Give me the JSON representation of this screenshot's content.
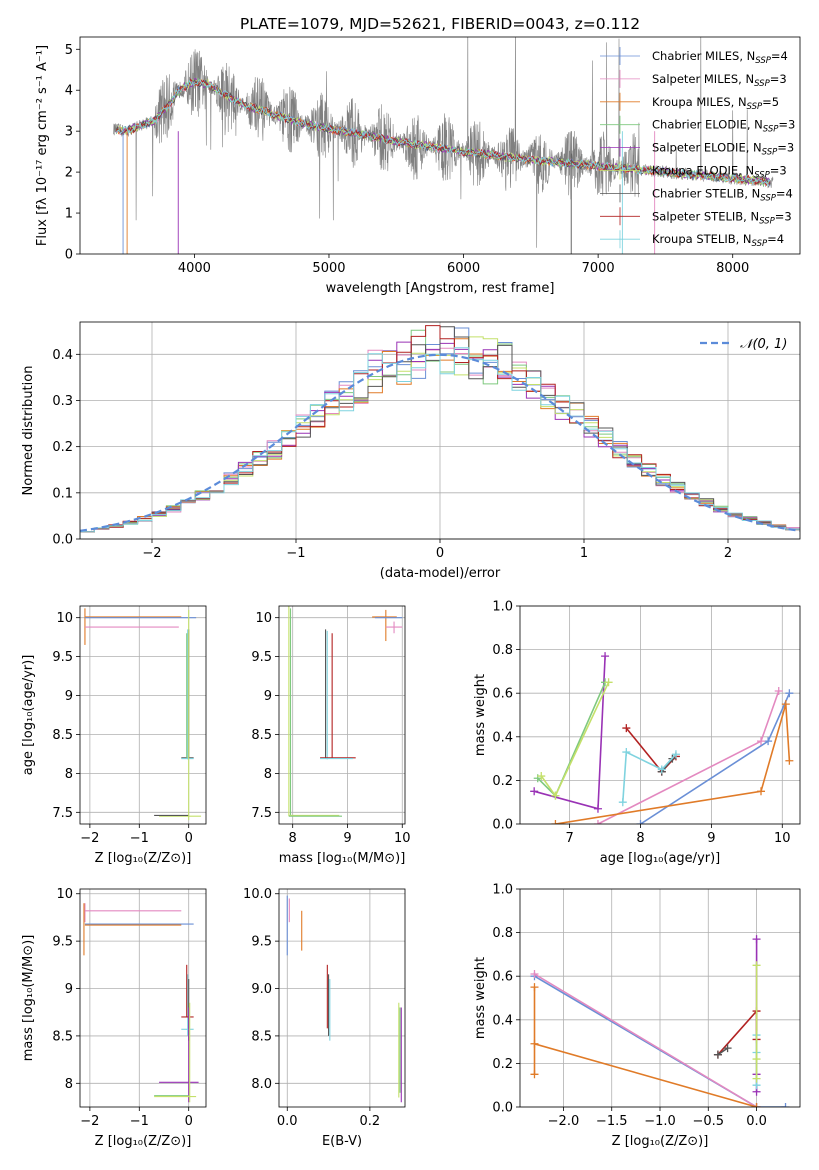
{
  "chart_data": [
    {
      "type": "line",
      "title": "PLATE=1079, MJD=52621, FIBERID=0043, z=0.112",
      "xlabel": "wavelength [Angstrom, rest frame]",
      "ylabel": "Flux [fλ 10⁻¹⁷ erg cm⁻² s⁻¹ A⁻¹]",
      "xlim": [
        3150,
        8500
      ],
      "ylim": [
        0,
        5.3
      ],
      "xticks": [
        4000,
        5000,
        6000,
        7000,
        8000
      ],
      "yticks": [
        0,
        1,
        2,
        3,
        4,
        5
      ],
      "grid": false,
      "legend_position": "top-right",
      "data_color": "#808080",
      "series": [
        {
          "name": "Chabrier MILES, N",
          "sub": "SSP",
          "suffix": "=4",
          "color": "#6a8fd6"
        },
        {
          "name": "Salpeter MILES, N",
          "sub": "SSP",
          "suffix": "=3",
          "color": "#e389c0"
        },
        {
          "name": "Kroupa MILES, N",
          "sub": "SSP",
          "suffix": "=5",
          "color": "#e07b28"
        },
        {
          "name": "Chabrier ELODIE, N",
          "sub": "SSP",
          "suffix": "=3",
          "color": "#7fc97f"
        },
        {
          "name": "Salpeter ELODIE, N",
          "sub": "SSP",
          "suffix": "=3",
          "color": "#9932b5"
        },
        {
          "name": "Kroupa ELODIE, N",
          "sub": "SSP",
          "suffix": "=3",
          "color": "#c4e06a"
        },
        {
          "name": "Chabrier STELIB, N",
          "sub": "SSP",
          "suffix": "=4",
          "color": "#555555"
        },
        {
          "name": "Salpeter STELIB, N",
          "sub": "SSP",
          "suffix": "=3",
          "color": "#b22222"
        },
        {
          "name": "Kroupa STELIB, N",
          "sub": "SSP",
          "suffix": "=4",
          "color": "#7fd3df"
        }
      ],
      "continuum": {
        "x": [
          3400,
          3500,
          3600,
          3700,
          3800,
          3900,
          4000,
          4100,
          4200,
          4300,
          4400,
          4600,
          4800,
          5000,
          5200,
          5500,
          6000,
          6500,
          7000,
          7500,
          8000,
          8300
        ],
        "y": [
          3.05,
          3.0,
          3.15,
          3.25,
          3.6,
          4.05,
          4.2,
          4.15,
          3.95,
          3.75,
          3.6,
          3.4,
          3.2,
          3.05,
          2.95,
          2.75,
          2.5,
          2.3,
          2.15,
          2.0,
          1.85,
          1.75
        ]
      }
    },
    {
      "type": "line",
      "xlabel": "(data-model)/error",
      "ylabel": "Normed distribution",
      "xlim": [
        -2.5,
        2.5
      ],
      "ylim": [
        0,
        0.47
      ],
      "xticks": [
        -2,
        -1,
        0,
        1,
        2
      ],
      "yticks": [
        0.0,
        0.1,
        0.2,
        0.3,
        0.4
      ],
      "grid": true,
      "legend_position": "top-right",
      "reference": {
        "name": "𝒩(0, 1)",
        "color": "#5b8bd9",
        "mean": 0,
        "sigma": 1
      },
      "histogram_bin_edges_start": -2.5,
      "histogram_bin_width": 0.1,
      "histogram_series_count": 9
    },
    {
      "type": "scatter",
      "xlabel": "Z [log₁₀(Z/Z⊙)]",
      "ylabel": "age  [log₁₀(age/yr)]",
      "xlim": [
        -2.2,
        0.35
      ],
      "ylim": [
        7.35,
        10.15
      ],
      "xticks": [
        -2,
        -1,
        0
      ],
      "yticks": [
        7.5,
        8.0,
        8.5,
        9.0,
        9.5,
        10.0
      ],
      "grid": true
    },
    {
      "type": "scatter",
      "xlabel": "mass [log₁₀(M/M⊙)]",
      "xlim": [
        7.75,
        10.05
      ],
      "ylim": [
        7.35,
        10.15
      ],
      "xticks": [
        8,
        9,
        10
      ],
      "yticks": [
        7.5,
        8.0,
        8.5,
        9.0,
        9.5,
        10.0
      ],
      "grid": true
    },
    {
      "type": "line",
      "xlabel": "age  [log₁₀(age/yr)]",
      "ylabel": "mass weight",
      "xlim": [
        6.3,
        10.25
      ],
      "ylim": [
        0,
        1.0
      ],
      "xticks": [
        7,
        8,
        9,
        10
      ],
      "yticks": [
        0.0,
        0.2,
        0.4,
        0.6,
        0.8,
        1.0
      ],
      "grid": true,
      "series": [
        {
          "color": "#6a8fd6",
          "x": [
            8.0,
            9.8,
            10.1
          ],
          "y": [
            0.0,
            0.38,
            0.6
          ]
        },
        {
          "color": "#e389c0",
          "x": [
            7.4,
            9.7,
            9.95
          ],
          "y": [
            0.0,
            0.38,
            0.61
          ]
        },
        {
          "color": "#e07b28",
          "x": [
            6.8,
            9.7,
            10.05,
            10.1
          ],
          "y": [
            0.0,
            0.15,
            0.55,
            0.29
          ]
        },
        {
          "color": "#9932b5",
          "x": [
            6.5,
            7.4,
            7.5
          ],
          "y": [
            0.15,
            0.07,
            0.77
          ]
        },
        {
          "color": "#b22222",
          "x": [
            7.8,
            8.3,
            8.5
          ],
          "y": [
            0.44,
            0.24,
            0.31
          ]
        },
        {
          "color": "#555555",
          "x": [
            8.3,
            8.45
          ],
          "y": [
            0.24,
            0.3
          ]
        },
        {
          "color": "#7fd3df",
          "x": [
            7.75,
            7.8,
            8.3,
            8.5
          ],
          "y": [
            0.1,
            0.33,
            0.25,
            0.32
          ]
        },
        {
          "color": "#7fc97f",
          "x": [
            6.55,
            6.8,
            7.5
          ],
          "y": [
            0.21,
            0.13,
            0.65
          ]
        },
        {
          "color": "#c4e06a",
          "x": [
            6.6,
            6.8,
            7.55
          ],
          "y": [
            0.22,
            0.13,
            0.65
          ]
        }
      ]
    },
    {
      "type": "scatter",
      "xlabel": "Z [log₁₀(Z/Z⊙)]",
      "ylabel": "mass [log₁₀(M/M⊙)]",
      "xlim": [
        -2.2,
        0.35
      ],
      "ylim": [
        7.75,
        10.05
      ],
      "xticks": [
        -2,
        -1,
        0
      ],
      "yticks": [
        8.0,
        8.5,
        9.0,
        9.5,
        10.0
      ],
      "grid": true
    },
    {
      "type": "scatter",
      "xlabel": "E(B-V)",
      "xlim": [
        -0.02,
        0.285
      ],
      "ylim": [
        7.75,
        10.05
      ],
      "xticks": [
        0.0,
        0.2
      ],
      "yticks": [
        8.0,
        8.5,
        9.0,
        9.5,
        10.0
      ],
      "grid": true
    },
    {
      "type": "line",
      "xlabel": "Z [log₁₀(Z/Z⊙)]",
      "ylabel": "mass weight",
      "xlim": [
        -2.45,
        0.45
      ],
      "ylim": [
        0,
        1.0
      ],
      "xticks": [
        -2.0,
        -1.5,
        -1.0,
        -0.5,
        0.0
      ],
      "yticks": [
        0.0,
        0.2,
        0.4,
        0.6,
        0.8,
        1.0
      ],
      "grid": true,
      "series": [
        {
          "color": "#6a8fd6",
          "x": [
            -2.3,
            0.0,
            0.3
          ],
          "y": [
            0.6,
            0.0,
            0.0
          ]
        },
        {
          "color": "#e389c0",
          "x": [
            -2.3,
            0.0
          ],
          "y": [
            0.61,
            0.0
          ]
        },
        {
          "color": "#e07b28",
          "x": [
            -2.3,
            -2.3,
            -2.3,
            0.0
          ],
          "y": [
            0.55,
            0.15,
            0.29,
            0.0
          ]
        },
        {
          "color": "#9932b5",
          "x": [
            0.0,
            0.0,
            0.0
          ],
          "y": [
            0.77,
            0.07,
            0.15
          ]
        },
        {
          "color": "#b22222",
          "x": [
            -0.4,
            0.0,
            0.0
          ],
          "y": [
            0.24,
            0.44,
            0.31
          ]
        },
        {
          "color": "#555555",
          "x": [
            -0.4,
            -0.3
          ],
          "y": [
            0.24,
            0.27
          ]
        },
        {
          "color": "#7fd3df",
          "x": [
            0.0,
            0.0,
            0.0
          ],
          "y": [
            0.33,
            0.1,
            0.25
          ]
        },
        {
          "color": "#c4e06a",
          "x": [
            0.0,
            0.0,
            0.0
          ],
          "y": [
            0.65,
            0.22,
            0.13
          ]
        }
      ]
    }
  ]
}
